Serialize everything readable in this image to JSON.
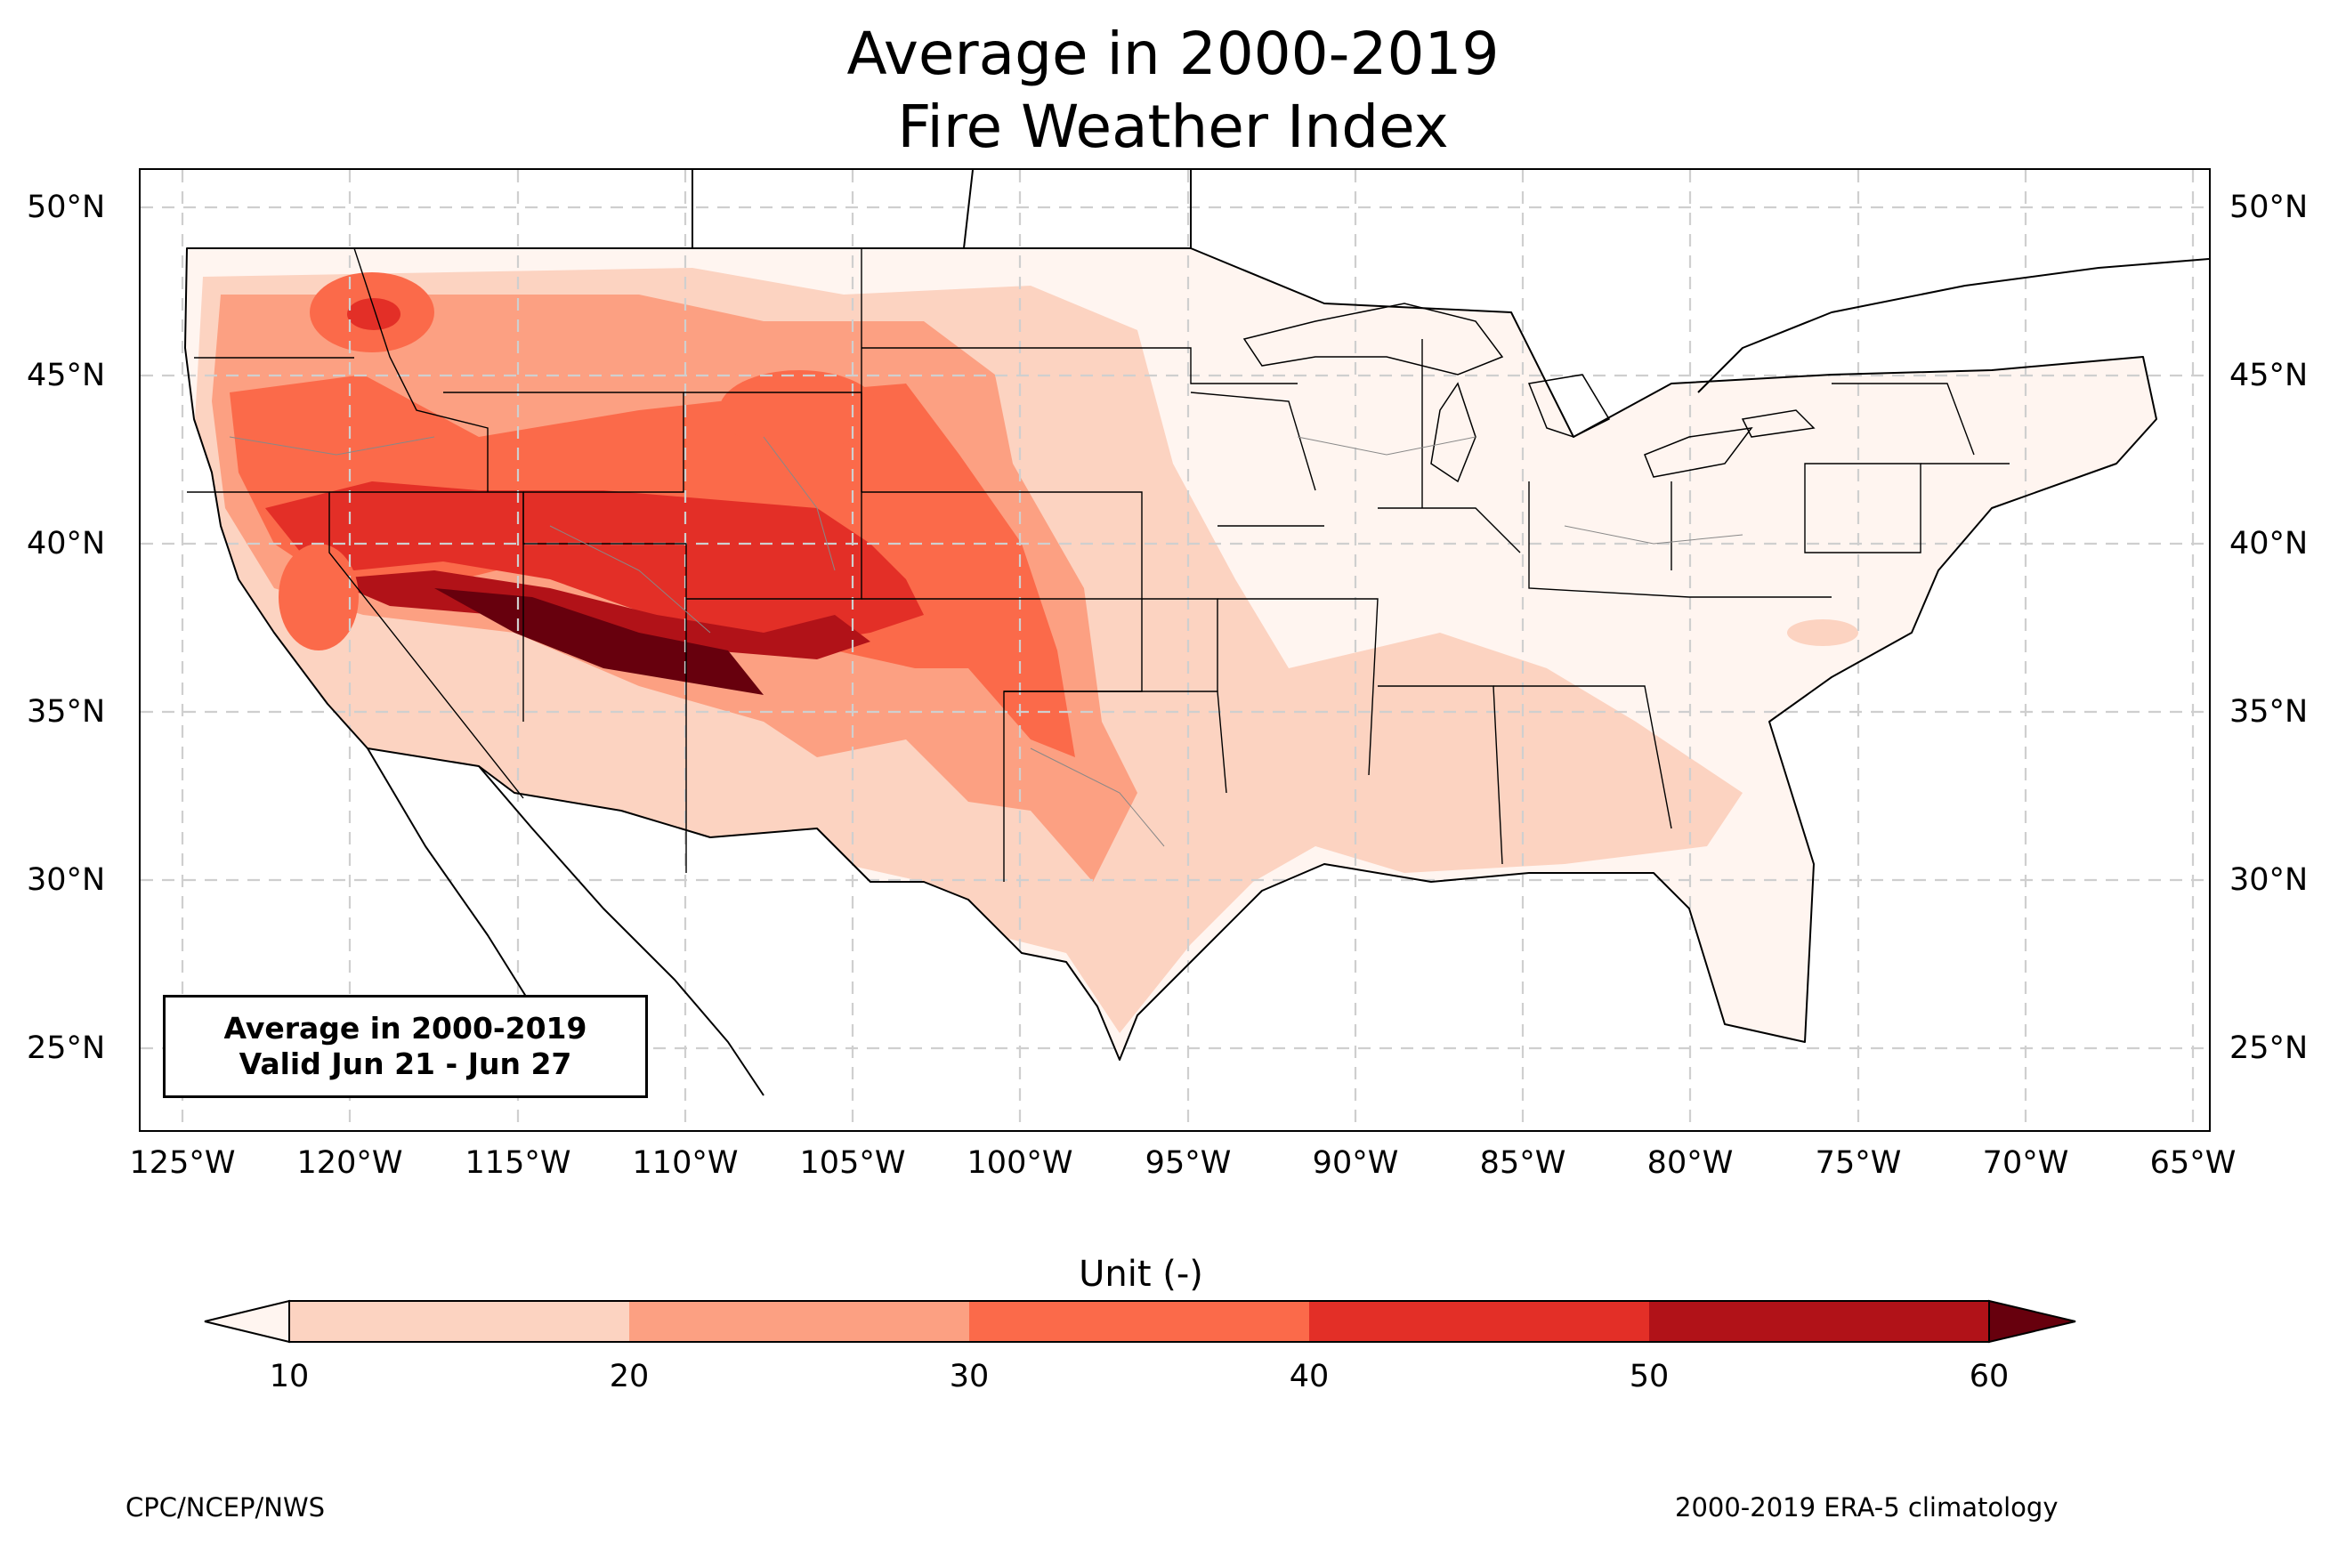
{
  "title": {
    "line1": "Average in 2000-2019",
    "line2": "Fire Weather Index"
  },
  "lat_ticks": [
    "50°N",
    "45°N",
    "40°N",
    "35°N",
    "30°N",
    "25°N"
  ],
  "lon_ticks": [
    "125°W",
    "120°W",
    "115°W",
    "110°W",
    "105°W",
    "100°W",
    "95°W",
    "90°W",
    "85°W",
    "80°W",
    "75°W",
    "70°W",
    "65°W"
  ],
  "info_box": {
    "line1": "Average in 2000-2019",
    "line2": "Valid Jun 21 - Jun 27"
  },
  "colorbar": {
    "label": "Unit (-)",
    "ticks": [
      "10",
      "20",
      "30",
      "40",
      "50",
      "60"
    ],
    "colors": [
      "#fcd3c1",
      "#fca082",
      "#fb6a4a",
      "#e32f27",
      "#b11218",
      "#67000d"
    ],
    "under_color": "#fff5f0",
    "over_color": "#67000d"
  },
  "footer": {
    "left": "CPC/NCEP/NWS",
    "right": "2000-2019 ERA-5 climatology"
  }
}
